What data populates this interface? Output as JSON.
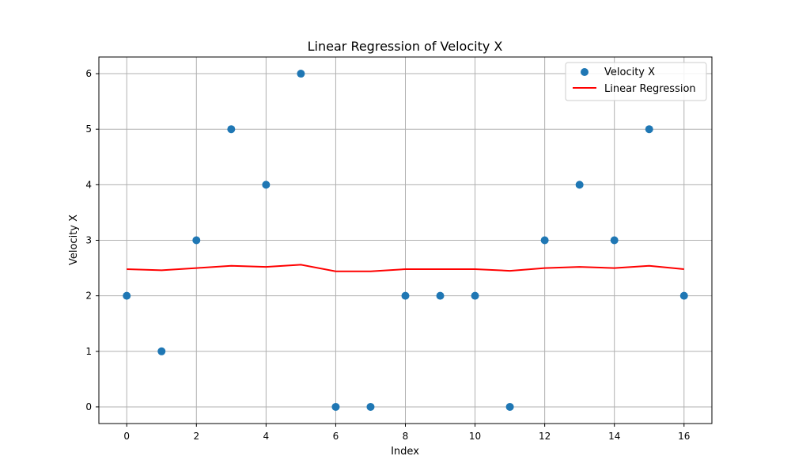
{
  "chart_data": {
    "type": "scatter",
    "title": "Linear Regression of Velocity X",
    "xlabel": "Index",
    "ylabel": "Velocity X",
    "xlim": [
      -0.8,
      16.8
    ],
    "ylim": [
      -0.3,
      6.3
    ],
    "xticks": [
      0,
      2,
      4,
      6,
      8,
      10,
      12,
      14,
      16
    ],
    "yticks": [
      0,
      1,
      2,
      3,
      4,
      5,
      6
    ],
    "grid": true,
    "legend_position": "top-right",
    "series": [
      {
        "name": "Velocity X",
        "kind": "scatter",
        "color": "#1f77b4",
        "x": [
          0,
          1,
          2,
          3,
          4,
          5,
          6,
          7,
          8,
          9,
          10,
          11,
          12,
          13,
          14,
          15,
          16
        ],
        "y": [
          2,
          1,
          3,
          5,
          4,
          6,
          0,
          0,
          2,
          2,
          2,
          0,
          3,
          4,
          3,
          5,
          2
        ]
      },
      {
        "name": "Linear Regression",
        "kind": "line",
        "color": "#ff0000",
        "x": [
          0,
          1,
          2,
          3,
          4,
          5,
          6,
          7,
          8,
          9,
          10,
          11,
          12,
          13,
          14,
          15,
          16
        ],
        "y": [
          2.48,
          2.46,
          2.5,
          2.54,
          2.52,
          2.56,
          2.44,
          2.44,
          2.48,
          2.48,
          2.48,
          2.45,
          2.5,
          2.52,
          2.5,
          2.54,
          2.48
        ]
      }
    ]
  }
}
